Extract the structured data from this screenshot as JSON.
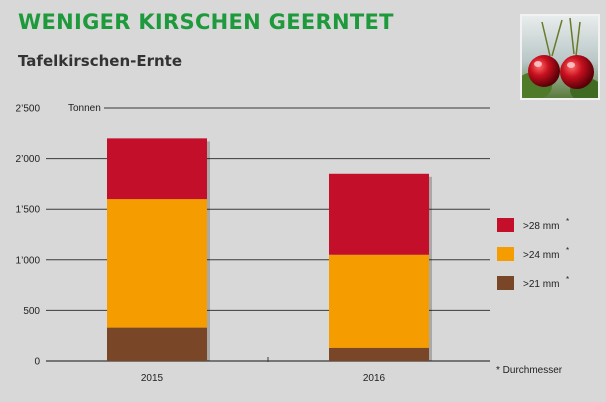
{
  "header": {
    "title": "WENIGER KIRSCHEN GEERNTET",
    "subtitle": "Tafelkirschen-Ernte"
  },
  "photo": {
    "icon": "cherries-photo"
  },
  "colors": {
    "background": "#d8d8d8",
    "title": "#1e9a3c",
    "gt28": "#c40f2b",
    "gt24": "#f59c00",
    "gt21": "#7a4628",
    "grid": "#3a3a3a"
  },
  "chart_data": {
    "type": "bar",
    "stacked": true,
    "title": "Tafelkirschen-Ernte",
    "ylabel": "Tonnen",
    "xlabel": "",
    "ylim": [
      0,
      2500
    ],
    "yticks": [
      0,
      500,
      1000,
      1500,
      2000,
      2500
    ],
    "ytick_labels": [
      "0",
      "500",
      "1’000",
      "1’500",
      "2’000",
      "2’500"
    ],
    "categories": [
      "2015",
      "2016"
    ],
    "series": [
      {
        "name": ">21 mm*",
        "label_text": ">21 mm",
        "color": "#7a4628",
        "values": [
          330,
          130
        ]
      },
      {
        "name": ">24 mm*",
        "label_text": ">24 mm",
        "color": "#f59c00",
        "values": [
          1270,
          920
        ]
      },
      {
        "name": ">28 mm*",
        "label_text": ">28 mm",
        "color": "#c40f2b",
        "values": [
          600,
          800
        ]
      }
    ],
    "legend_marker": "*",
    "footnote": "* Durchmesser",
    "legend_position": "right"
  }
}
